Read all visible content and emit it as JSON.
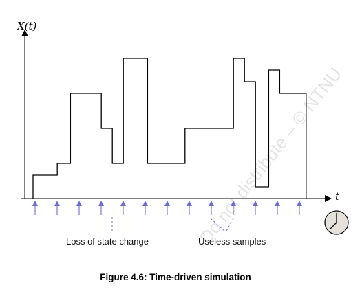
{
  "axes": {
    "y_label": "X(t)",
    "x_label": "t"
  },
  "signal": {
    "color": "#000000",
    "steps": [
      {
        "t0": 0,
        "t1": 1.1,
        "level": 1.0
      },
      {
        "t0": 1.1,
        "t1": 1.7,
        "level": 1.5
      },
      {
        "t0": 1.7,
        "t1": 3.1,
        "level": 4.5
      },
      {
        "t0": 3.1,
        "t1": 3.6,
        "level": 3.0
      },
      {
        "t0": 3.6,
        "t1": 4.1,
        "level": 1.5
      },
      {
        "t0": 4.1,
        "t1": 5.2,
        "level": 6.0
      },
      {
        "t0": 5.2,
        "t1": 6.9,
        "level": 1.5
      },
      {
        "t0": 6.9,
        "t1": 9.1,
        "level": 3.0
      },
      {
        "t0": 9.1,
        "t1": 9.6,
        "level": 6.0
      },
      {
        "t0": 9.6,
        "t1": 10.1,
        "level": 5.0
      },
      {
        "t0": 10.1,
        "t1": 10.7,
        "level": 0.5
      },
      {
        "t0": 10.7,
        "t1": 11.2,
        "level": 5.5
      },
      {
        "t0": 11.2,
        "t1": 12.4,
        "level": 4.5
      }
    ]
  },
  "samples": {
    "times": [
      0,
      1,
      2,
      3,
      4,
      5,
      6,
      7,
      8,
      9,
      10,
      11,
      12
    ],
    "color": "#6a6ae8"
  },
  "annotations": {
    "loss_label": "Loss of state change",
    "useless_label": "Useless samples"
  },
  "clock_icon": "clock-icon",
  "caption": "Figure 4.6: Time-driven simulation",
  "watermark": "Do not distribute – © NTNU"
}
